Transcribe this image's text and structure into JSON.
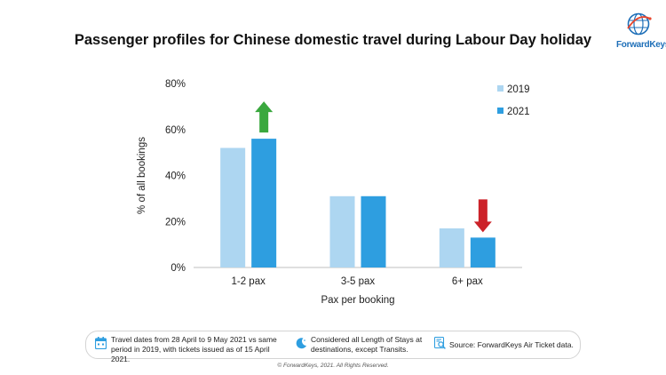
{
  "title": "Passenger profiles for Chinese domestic travel during Labour Day holiday",
  "logo": {
    "text": "ForwardKeys"
  },
  "colors": {
    "series_2019": "#add6f1",
    "series_2021": "#2e9ee0",
    "up_arrow": "#3aa83e",
    "down_arrow": "#cc2229",
    "axis": "#bfbfbf",
    "icon": "#2e9ee0"
  },
  "chart_data": {
    "type": "bar",
    "title": "Passenger profiles for Chinese domestic travel during Labour Day holiday",
    "xlabel": "Pax per booking",
    "ylabel": "% of all bookings",
    "categories": [
      "1-2 pax",
      "3-5 pax",
      "6+ pax"
    ],
    "series": [
      {
        "name": "2019",
        "values": [
          52,
          31,
          17
        ]
      },
      {
        "name": "2021",
        "values": [
          56,
          31,
          13
        ]
      }
    ],
    "ylim": [
      0,
      80
    ],
    "yticks": [
      0,
      20,
      40,
      60,
      80
    ],
    "ytick_labels": [
      "0%",
      "20%",
      "40%",
      "60%",
      "80%"
    ],
    "grid": false,
    "legend_position": "top-right",
    "annotations": [
      {
        "type": "up-arrow",
        "category": "1-2 pax"
      },
      {
        "type": "down-arrow",
        "category": "6+ pax"
      }
    ]
  },
  "footer": {
    "notes": [
      {
        "icon": "calendar-icon",
        "text": "Travel dates from 28 April to 9 May 2021 vs same period in 2019, with tickets issued as of 15 April 2021."
      },
      {
        "icon": "moon-icon",
        "text": "Considered all Length of Stays at destinations, except Transits."
      },
      {
        "icon": "ticket-search-icon",
        "text": "Source: ForwardKeys Air Ticket data."
      }
    ],
    "copyright": "© ForwardKeys, 2021. All Rights Reserved."
  }
}
